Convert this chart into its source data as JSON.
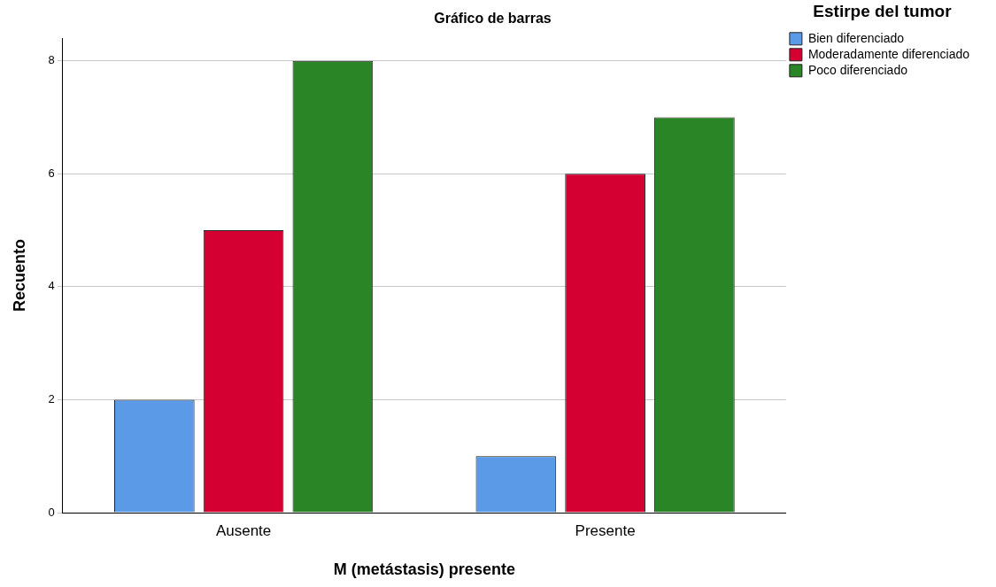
{
  "chart_data": {
    "type": "bar",
    "title": "Gráfico de barras",
    "xlabel": "M (metástasis) presente",
    "ylabel": "Recuento",
    "legend_title": "Estirpe del tumor",
    "categories": [
      "Ausente",
      "Presente"
    ],
    "series": [
      {
        "name": "Bien diferenciado",
        "color": "#5a9ae6",
        "values": [
          2,
          1
        ]
      },
      {
        "name": "Moderadamente diferenciado",
        "color": "#d50032",
        "values": [
          5,
          6
        ]
      },
      {
        "name": "Poco diferenciado",
        "color": "#2a8526",
        "values": [
          8,
          7
        ]
      }
    ],
    "ylim": [
      0,
      8.4
    ],
    "yticks": [
      0,
      2,
      4,
      6,
      8
    ],
    "grid": "y",
    "legend": "right"
  }
}
